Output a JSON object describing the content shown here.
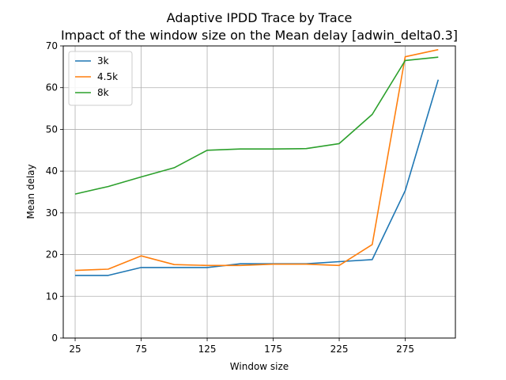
{
  "chart_data": {
    "type": "line",
    "title": "Adaptive IPDD Trace by Trace",
    "subtitle": "Impact of the window size on the Mean delay [adwin_delta0.3]",
    "xlabel": "Window size",
    "ylabel": "Mean delay",
    "xlim": [
      16,
      313
    ],
    "ylim": [
      0,
      70
    ],
    "xticks": [
      25,
      75,
      125,
      175,
      225,
      275
    ],
    "yticks": [
      0,
      10,
      20,
      30,
      40,
      50,
      60,
      70
    ],
    "grid": true,
    "legend_position": "top-left",
    "x": [
      25,
      50,
      75,
      100,
      125,
      150,
      175,
      200,
      225,
      250,
      275,
      300
    ],
    "series": [
      {
        "name": "3k",
        "color": "#1f77b4",
        "values": [
          15.0,
          15.0,
          16.9,
          16.9,
          16.9,
          17.8,
          17.8,
          17.8,
          18.3,
          18.8,
          35.3,
          61.9
        ]
      },
      {
        "name": "4.5k",
        "color": "#ff7f0e",
        "values": [
          16.2,
          16.5,
          19.7,
          17.6,
          17.4,
          17.4,
          17.7,
          17.7,
          17.4,
          22.4,
          67.4,
          69.1
        ]
      },
      {
        "name": "8k",
        "color": "#2ca02c",
        "values": [
          34.5,
          36.3,
          38.6,
          40.8,
          45.0,
          45.3,
          45.3,
          45.4,
          46.6,
          53.6,
          66.5,
          67.3
        ]
      }
    ]
  }
}
